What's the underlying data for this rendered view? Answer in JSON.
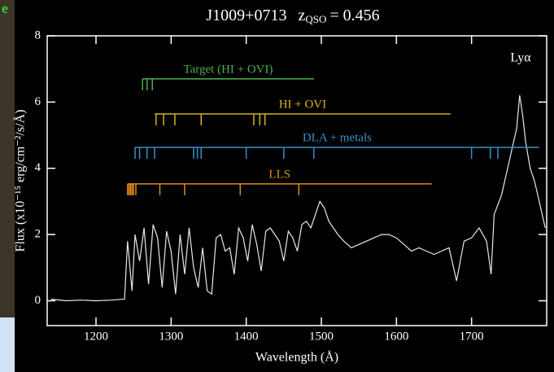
{
  "fragment_text": "e",
  "chart_data": {
    "type": "line",
    "title": "J1009+0713",
    "title_z": "z",
    "title_sub": "QSO",
    "title_value": "= 0.456",
    "xlabel": "Wavelength (Å)",
    "ylabel": "Flux (x10⁻¹⁵ erg/cm⁻²/s/Å)",
    "annotation": "Lyα",
    "color": "#e8e8e8",
    "xlim": [
      1135,
      1800
    ],
    "ylim": [
      -0.75,
      8
    ],
    "xticks": [
      1200,
      1300,
      1400,
      1500,
      1600,
      1700
    ],
    "yticks": [
      0,
      2,
      4,
      6,
      8
    ],
    "x": [
      1140,
      1160,
      1180,
      1200,
      1220,
      1238,
      1242,
      1248,
      1252,
      1258,
      1264,
      1270,
      1276,
      1282,
      1288,
      1294,
      1300,
      1306,
      1312,
      1318,
      1324,
      1330,
      1336,
      1342,
      1348,
      1354,
      1360,
      1366,
      1372,
      1378,
      1384,
      1390,
      1396,
      1402,
      1408,
      1414,
      1420,
      1426,
      1432,
      1438,
      1444,
      1450,
      1456,
      1462,
      1468,
      1474,
      1480,
      1486,
      1492,
      1498,
      1504,
      1510,
      1516,
      1522,
      1530,
      1540,
      1550,
      1560,
      1570,
      1580,
      1590,
      1600,
      1610,
      1620,
      1630,
      1640,
      1650,
      1660,
      1670,
      1680,
      1690,
      1700,
      1710,
      1720,
      1726,
      1730,
      1740,
      1748,
      1754,
      1760,
      1764,
      1768,
      1772,
      1778,
      1784,
      1790,
      1798
    ],
    "values": [
      0.05,
      0.0,
      0.02,
      0.0,
      0.02,
      0.05,
      1.8,
      0.3,
      2.0,
      1.2,
      2.2,
      0.5,
      2.3,
      1.9,
      0.4,
      2.1,
      1.5,
      0.2,
      2.0,
      0.8,
      2.2,
      1.0,
      0.4,
      1.6,
      0.3,
      0.2,
      1.9,
      2.0,
      1.5,
      1.6,
      0.8,
      2.2,
      1.9,
      1.2,
      2.3,
      1.7,
      0.9,
      2.1,
      2.2,
      2.0,
      1.8,
      1.2,
      2.1,
      1.9,
      1.5,
      2.3,
      2.4,
      2.2,
      2.6,
      3.0,
      2.8,
      2.4,
      2.2,
      2.0,
      1.8,
      1.6,
      1.7,
      1.8,
      1.9,
      2.0,
      2.0,
      1.9,
      1.7,
      1.5,
      1.6,
      1.5,
      1.4,
      1.5,
      1.6,
      0.6,
      1.8,
      1.9,
      2.2,
      1.8,
      0.8,
      2.6,
      3.2,
      4.0,
      4.6,
      5.2,
      6.2,
      5.6,
      4.8,
      4.0,
      3.6,
      3.0,
      2.2
    ],
    "systems": [
      {
        "name": "Target (HI + OVI)",
        "color": "#4caf50",
        "y": 6.7,
        "x_range": [
          1262,
          1490
        ],
        "lines": [
          1262,
          1268,
          1275
        ]
      },
      {
        "name": "HI + OVI",
        "color": "#d4b21e",
        "y": 5.64,
        "x_range": [
          1278,
          1672
        ],
        "lines": [
          1280,
          1290,
          1305,
          1340,
          1410,
          1418,
          1425
        ]
      },
      {
        "name": "DLA + metals",
        "color": "#3a8fc7",
        "y": 4.63,
        "x_range": [
          1252,
          1790
        ],
        "lines": [
          1252,
          1258,
          1268,
          1278,
          1330,
          1335,
          1340,
          1400,
          1450,
          1490,
          1700,
          1725,
          1735
        ]
      },
      {
        "name": "LLS",
        "color": "#e08a1a",
        "y": 3.53,
        "x_range": [
          1242,
          1647
        ],
        "lines": [
          1242,
          1244,
          1246,
          1248,
          1250,
          1253,
          1285,
          1318,
          1392,
          1470
        ]
      }
    ]
  }
}
